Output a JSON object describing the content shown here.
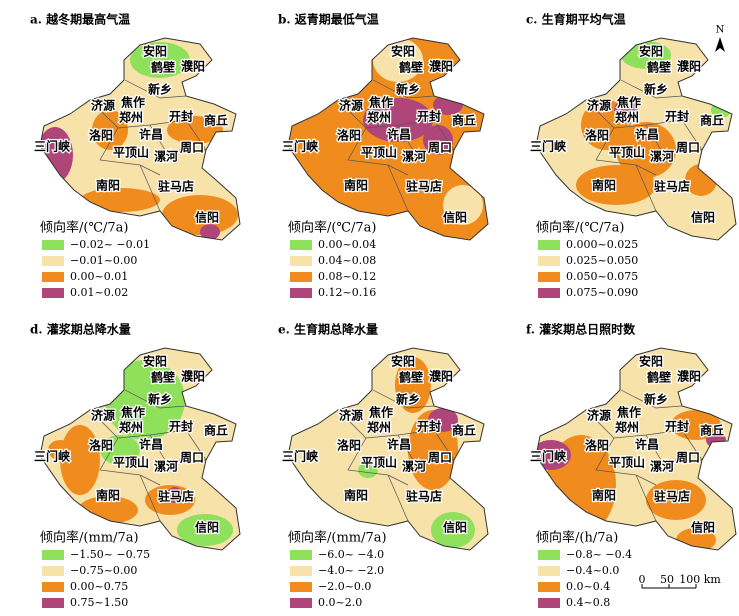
{
  "cities": [
    "安阳",
    "鹤壁",
    "濮阳",
    "新乡",
    "济源",
    "焦作",
    "郑州",
    "开封",
    "商丘",
    "洛阳",
    "许昌",
    "三门峡",
    "平顶山",
    "漯河",
    "周口",
    "南阳",
    "驻马店",
    "信阳"
  ],
  "panels": [
    {
      "title": "a. 越冬期最高气温",
      "legend_title": "倾向率/(℃/7a)",
      "legend": [
        {
          "label": "−0.02~ −0.01",
          "color": "#8fe05a"
        },
        {
          "label": "−0.01~0.00",
          "color": "#f7e2aa"
        },
        {
          "label": "0.00~0.01",
          "color": "#f08c1e"
        },
        {
          "label": "0.01~0.02",
          "color": "#b0457a"
        }
      ]
    },
    {
      "title": "b. 返青期最低气温",
      "legend_title": "倾向率/(℃/7a)",
      "legend": [
        {
          "label": "0.00~0.04",
          "color": "#8fe05a"
        },
        {
          "label": "0.04~0.08",
          "color": "#f7e2aa"
        },
        {
          "label": "0.08~0.12",
          "color": "#f08c1e"
        },
        {
          "label": "0.12~0.16",
          "color": "#b0457a"
        }
      ]
    },
    {
      "title": "c. 生育期平均气温",
      "legend_title": "倾向率/(℃/7a)",
      "legend": [
        {
          "label": "0.000~0.025",
          "color": "#8fe05a"
        },
        {
          "label": "0.025~0.050",
          "color": "#f7e2aa"
        },
        {
          "label": "0.050~0.075",
          "color": "#f08c1e"
        },
        {
          "label": "0.075~0.090",
          "color": "#b0457a"
        }
      ]
    },
    {
      "title": "d. 灌浆期总降水量",
      "legend_title": "倾向率/(mm/7a)",
      "legend": [
        {
          "label": "−1.50~ −0.75",
          "color": "#8fe05a"
        },
        {
          "label": "−0.75~0.00",
          "color": "#f7e2aa"
        },
        {
          "label": "0.00~0.75",
          "color": "#f08c1e"
        },
        {
          "label": "0.75~1.50",
          "color": "#b0457a"
        }
      ]
    },
    {
      "title": "e. 生育期总降水量",
      "legend_title": "倾向率/(mm/7a)",
      "legend": [
        {
          "label": "−6.0~ −4.0",
          "color": "#8fe05a"
        },
        {
          "label": "−4.0~ −2.0",
          "color": "#f7e2aa"
        },
        {
          "label": "−2.0~0.0",
          "color": "#f08c1e"
        },
        {
          "label": "0.0~2.0",
          "color": "#b0457a"
        }
      ]
    },
    {
      "title": "f. 灌浆期总日照时数",
      "legend_title": "倾向率/(h/7a)",
      "legend": [
        {
          "label": "−0.8~ −0.4",
          "color": "#8fe05a"
        },
        {
          "label": "−0.4~0.0",
          "color": "#f7e2aa"
        },
        {
          "label": "0.0~0.4",
          "color": "#f08c1e"
        },
        {
          "label": "0.4~0.8",
          "color": "#b0457a"
        }
      ]
    }
  ],
  "north": "N",
  "scale_bar": [
    "0",
    "50",
    "100 km"
  ]
}
